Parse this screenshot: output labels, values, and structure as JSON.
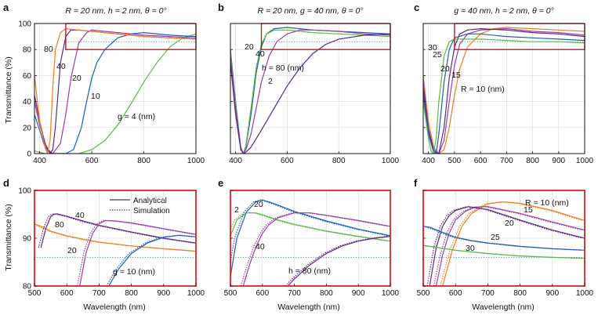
{
  "panel_labels": [
    "a",
    "b",
    "c",
    "d",
    "e",
    "f"
  ],
  "titles": {
    "a": "R = 20 nm, h = 2 nm, θ = 0°",
    "b": "R = 20 nm, g = 40 nm, θ = 0°",
    "c": "g = 40 nm, h = 2 nm, θ = 0°"
  },
  "ylabel": "Transmittance (%)",
  "xlabel": "Wavelength (nm)",
  "legend": {
    "solid": "Analytical",
    "dotted": "Simulation"
  },
  "colors": {
    "green": "#5cb84a",
    "blue": "#1f5fae",
    "purple": "#9b3fa0",
    "darkpurple": "#5a2a82",
    "orange": "#f07f21",
    "zoom_box": "#b81d24",
    "red_frame": "#d9232a",
    "ref_line": "#2a7a8c"
  },
  "chart_data": [
    {
      "panel": "a",
      "type": "line",
      "xlim": [
        380,
        1000
      ],
      "ylim": [
        0,
        100
      ],
      "xticks": [
        400,
        600,
        800,
        1000
      ],
      "yticks": [
        0,
        20,
        40,
        60,
        80,
        100
      ],
      "zoom_box": {
        "x": [
          500,
          1000
        ],
        "y": [
          80,
          100
        ]
      },
      "ref_level": 86,
      "series": [
        {
          "name": "g = 4 (nm)",
          "color": "green",
          "x": [
            380,
            420,
            450,
            500,
            550,
            600,
            650,
            700,
            750,
            800,
            850,
            900,
            950,
            1000
          ],
          "y": [
            2,
            0,
            0,
            0,
            0,
            3,
            10,
            22,
            38,
            55,
            70,
            82,
            89,
            92
          ]
        },
        {
          "name": "10",
          "color": "blue",
          "x": [
            380,
            400,
            420,
            450,
            480,
            500,
            530,
            560,
            580,
            600,
            620,
            650,
            700,
            750,
            800,
            900,
            1000
          ],
          "y": [
            30,
            18,
            5,
            0,
            0,
            0,
            3,
            20,
            40,
            58,
            70,
            80,
            89,
            92,
            93,
            91,
            90
          ]
        },
        {
          "name": "20",
          "color": "purple",
          "x": [
            380,
            400,
            430,
            450,
            480,
            500,
            520,
            550,
            580,
            600,
            650,
            700,
            800,
            900,
            1000
          ],
          "y": [
            40,
            22,
            2,
            0,
            8,
            30,
            58,
            85,
            93,
            95,
            94,
            93,
            91,
            90,
            89
          ]
        },
        {
          "name": "40",
          "color": "darkpurple",
          "x": [
            380,
            400,
            420,
            440,
            450,
            460,
            470,
            480,
            500,
            520,
            550,
            600,
            700,
            800,
            900,
            1000
          ],
          "y": [
            45,
            25,
            8,
            0,
            3,
            20,
            45,
            70,
            90,
            95,
            95,
            94,
            92,
            90,
            89,
            88
          ]
        },
        {
          "name": "80",
          "color": "orange",
          "x": [
            380,
            400,
            420,
            430,
            440,
            450,
            460,
            480,
            500,
            550,
            600,
            700,
            800,
            900,
            1000
          ],
          "y": [
            60,
            25,
            5,
            0,
            10,
            50,
            80,
            93,
            96,
            95,
            94,
            92,
            90,
            89,
            88
          ]
        }
      ]
    },
    {
      "panel": "b",
      "type": "line",
      "xlim": [
        380,
        1000
      ],
      "ylim": [
        0,
        100
      ],
      "xticks": [
        400,
        600,
        800,
        1000
      ],
      "yticks": [
        0,
        20,
        40,
        60,
        80,
        100
      ],
      "zoom_box": {
        "x": [
          500,
          1000
        ],
        "y": [
          80,
          100
        ]
      },
      "ref_level": 86,
      "series": [
        {
          "name": "2",
          "color": "blue",
          "x": [
            380,
            400,
            420,
            430,
            440,
            460,
            480,
            500,
            520,
            550,
            600,
            700,
            800,
            900,
            1000
          ],
          "y": [
            80,
            40,
            5,
            0,
            5,
            30,
            62,
            82,
            92,
            96,
            97,
            95,
            94,
            93,
            92
          ]
        },
        {
          "name": "20",
          "color": "green",
          "x": [
            380,
            400,
            420,
            430,
            440,
            460,
            480,
            500,
            520,
            550,
            600,
            700,
            800,
            900,
            1000
          ],
          "y": [
            78,
            38,
            4,
            0,
            6,
            35,
            66,
            84,
            92,
            95,
            95,
            93,
            92,
            91,
            90
          ]
        },
        {
          "name": "40",
          "color": "purple",
          "x": [
            380,
            400,
            420,
            430,
            440,
            460,
            480,
            500,
            530,
            560,
            600,
            650,
            700,
            800,
            900,
            1000
          ],
          "y": [
            75,
            35,
            4,
            0,
            3,
            15,
            35,
            55,
            75,
            86,
            92,
            95,
            95,
            94,
            92,
            91
          ]
        },
        {
          "name": "h = 80 (nm)",
          "color": "darkpurple",
          "x": [
            380,
            400,
            420,
            430,
            440,
            460,
            500,
            550,
            600,
            650,
            700,
            750,
            800,
            900,
            1000
          ],
          "y": [
            70,
            30,
            3,
            0,
            1,
            5,
            18,
            35,
            52,
            66,
            77,
            84,
            88,
            91,
            92
          ]
        }
      ]
    },
    {
      "panel": "c",
      "type": "line",
      "xlim": [
        380,
        1000
      ],
      "ylim": [
        0,
        100
      ],
      "xticks": [
        400,
        500,
        600,
        700,
        800,
        900,
        1000
      ],
      "yticks": [
        0,
        20,
        40,
        60,
        80,
        100
      ],
      "zoom_box": {
        "x": [
          500,
          1000
        ],
        "y": [
          80,
          100
        ]
      },
      "ref_level": 86,
      "series": [
        {
          "name": "R = 10 (nm)",
          "color": "orange",
          "x": [
            380,
            400,
            420,
            440,
            460,
            480,
            500,
            520,
            550,
            600,
            650,
            700,
            800,
            900,
            1000
          ],
          "y": [
            60,
            25,
            5,
            0,
            3,
            20,
            45,
            65,
            82,
            92,
            96,
            97,
            96,
            95,
            94
          ]
        },
        {
          "name": "15",
          "color": "purple",
          "x": [
            380,
            400,
            420,
            440,
            460,
            480,
            500,
            520,
            550,
            600,
            700,
            800,
            900,
            1000
          ],
          "y": [
            55,
            20,
            3,
            0,
            10,
            40,
            68,
            84,
            92,
            95,
            96,
            94,
            93,
            91
          ]
        },
        {
          "name": "20",
          "color": "darkpurple",
          "x": [
            380,
            400,
            420,
            440,
            460,
            480,
            500,
            520,
            550,
            600,
            700,
            800,
            900,
            1000
          ],
          "y": [
            50,
            18,
            2,
            0,
            20,
            58,
            82,
            92,
            95,
            96,
            95,
            93,
            92,
            90
          ]
        },
        {
          "name": "25",
          "color": "blue",
          "x": [
            380,
            400,
            420,
            430,
            440,
            460,
            480,
            500,
            550,
            600,
            700,
            800,
            900,
            1000
          ],
          "y": [
            45,
            15,
            1,
            0,
            15,
            55,
            80,
            89,
            92,
            92,
            90,
            89,
            88,
            87
          ]
        },
        {
          "name": "30",
          "color": "green",
          "x": [
            380,
            400,
            410,
            420,
            430,
            440,
            460,
            480,
            500,
            550,
            600,
            700,
            800,
            900,
            1000
          ],
          "y": [
            40,
            12,
            2,
            0,
            12,
            40,
            75,
            86,
            88,
            88,
            88,
            87,
            86,
            86,
            85
          ]
        }
      ]
    },
    {
      "panel": "d",
      "type": "line",
      "xlim": [
        500,
        1000
      ],
      "ylim": [
        80,
        100
      ],
      "xticks": [
        500,
        600,
        700,
        800,
        900,
        1000
      ],
      "yticks": [
        80,
        90,
        100
      ],
      "ref_level": 86,
      "series": [
        {
          "name": "80",
          "color": "orange",
          "x": [
            500,
            520,
            550,
            600,
            650,
            700,
            800,
            900,
            1000
          ],
          "y": [
            93,
            92.5,
            91.5,
            90.5,
            89.8,
            89.2,
            88.4,
            87.8,
            87.3
          ]
        },
        {
          "name": "40",
          "color": "darkpurple",
          "x": [
            520,
            535,
            550,
            560,
            570,
            600,
            650,
            700,
            800,
            900,
            1000
          ],
          "y": [
            88,
            92,
            94.5,
            95.0,
            95.1,
            94.6,
            93.6,
            92.7,
            91.3,
            90.0,
            89.0
          ]
        },
        {
          "name": "20",
          "color": "purple",
          "x": [
            640,
            660,
            680,
            700,
            720,
            750,
            800,
            850,
            900,
            1000
          ],
          "y": [
            80,
            87,
            91,
            93,
            93.7,
            93.6,
            93.2,
            92.6,
            92.0,
            90.8
          ]
        },
        {
          "name": "g = 10 (nm)",
          "color": "blue",
          "x": [
            730,
            760,
            800,
            850,
            900,
            950,
            1000
          ],
          "y": [
            80,
            83.5,
            86.8,
            89,
            90.2,
            90.6,
            90.3
          ]
        }
      ]
    },
    {
      "panel": "e",
      "type": "line",
      "xlim": [
        500,
        1000
      ],
      "ylim": [
        80,
        100
      ],
      "xticks": [
        500,
        600,
        700,
        800,
        900,
        1000
      ],
      "yticks": [
        80,
        90,
        100
      ],
      "ref_level": 86,
      "series": [
        {
          "name": "2",
          "color": "green",
          "x": [
            500,
            520,
            550,
            580,
            600,
            650,
            700,
            800,
            900,
            1000
          ],
          "y": [
            90.5,
            93.8,
            95.3,
            95.3,
            94.9,
            93.8,
            92.9,
            91.5,
            90.4,
            89.4
          ]
        },
        {
          "name": "20",
          "color": "blue",
          "x": [
            500,
            520,
            550,
            580,
            600,
            620,
            650,
            700,
            800,
            900,
            1000
          ],
          "y": [
            82,
            90,
            95.5,
            97.6,
            98.0,
            97.6,
            96.9,
            95.6,
            93.6,
            91.9,
            90.5
          ]
        },
        {
          "name": "40",
          "color": "purple",
          "x": [
            540,
            560,
            580,
            600,
            620,
            650,
            700,
            750,
            800,
            900,
            1000
          ],
          "y": [
            80,
            84.5,
            88.2,
            91.0,
            92.8,
            94.3,
            95.3,
            95.3,
            94.8,
            93.7,
            92.5
          ]
        },
        {
          "name": "h = 80 (nm)",
          "color": "darkpurple",
          "x": [
            680,
            700,
            750,
            800,
            850,
            900,
            950,
            1000
          ],
          "y": [
            80,
            81.5,
            84.5,
            86.8,
            88.4,
            89.4,
            90.0,
            90.4
          ]
        }
      ]
    },
    {
      "panel": "f",
      "type": "line",
      "xlim": [
        500,
        1000
      ],
      "ylim": [
        80,
        100
      ],
      "xticks": [
        500,
        600,
        700,
        800,
        900,
        1000
      ],
      "yticks": [
        80,
        90,
        100
      ],
      "ref_level": 86,
      "series": [
        {
          "name": "R = 10 (nm)",
          "color": "orange",
          "x": [
            560,
            590,
            620,
            650,
            700,
            750,
            800,
            900,
            1000
          ],
          "y": [
            80,
            87.5,
            92.5,
            95.2,
            97.2,
            97.6,
            97.3,
            95.8,
            93.7
          ]
        },
        {
          "name": "15",
          "color": "purple",
          "x": [
            540,
            560,
            580,
            600,
            630,
            660,
            700,
            800,
            900,
            1000
          ],
          "y": [
            80,
            86.5,
            91.0,
            93.8,
            95.6,
            96.5,
            96.6,
            95.2,
            93.4,
            91.7
          ]
        },
        {
          "name": "20",
          "color": "darkpurple",
          "x": [
            520,
            540,
            560,
            580,
            600,
            640,
            700,
            800,
            900,
            1000
          ],
          "y": [
            80,
            88,
            92.5,
            94.7,
            95.8,
            96.6,
            96.0,
            93.8,
            91.7,
            90.0
          ]
        },
        {
          "name": "25",
          "color": "blue",
          "x": [
            500,
            520,
            550,
            580,
            600,
            650,
            700,
            800,
            900,
            1000
          ],
          "y": [
            92.5,
            92.3,
            91.5,
            90.7,
            90.2,
            89.5,
            89.0,
            88.3,
            87.8,
            87.5
          ]
        },
        {
          "name": "30",
          "color": "green",
          "x": [
            500,
            550,
            600,
            700,
            800,
            900,
            1000
          ],
          "y": [
            88.5,
            88.0,
            87.5,
            86.8,
            86.3,
            86.0,
            85.8
          ]
        }
      ]
    }
  ]
}
